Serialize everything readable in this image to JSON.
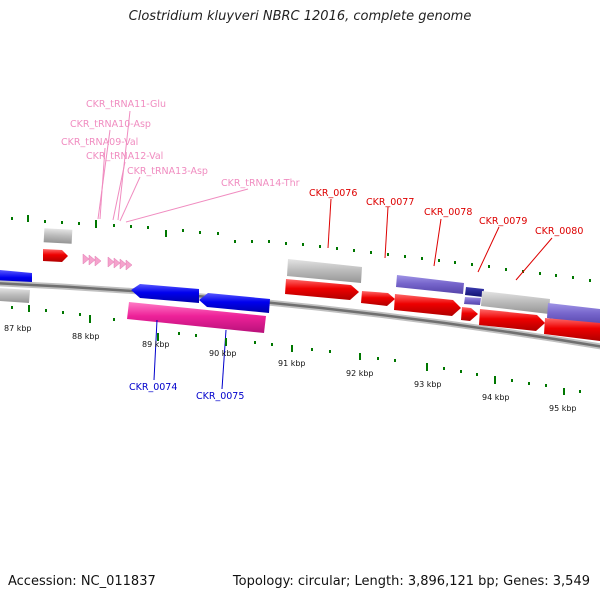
{
  "title": "Clostridium kluyveri NBRC 12016, complete genome",
  "footer": {
    "accession": "Accession: NC_011837",
    "topology": "Topology: circular; Length: 3,896,121 bp; Genes: 3,549"
  },
  "axis_labels": [
    "87 kbp",
    "88 kbp",
    "89 kbp",
    "90 kbp",
    "91 kbp",
    "92 kbp",
    "93 kbp",
    "94 kbp",
    "95 kbp"
  ],
  "gene_labels": {
    "trna11": "CKR_tRNA11-Glu",
    "trna10": "CKR_tRNA10-Asp",
    "trna09": "CKR_tRNA09-Val",
    "trna12": "CKR_tRNA12-Val",
    "trna13": "CKR_tRNA13-Asp",
    "trna14": "CKR_tRNA14-Thr",
    "g76": "CKR_0076",
    "g77": "CKR_0077",
    "g78": "CKR_0078",
    "g79": "CKR_0079",
    "g80": "CKR_0080",
    "g74": "CKR_0074",
    "g75": "CKR_0075"
  },
  "colors": {
    "trna": "#f08cc0",
    "cds_forward": "#ee0000",
    "cds_reverse": "#0000ee",
    "cds_purple": "#7766cc",
    "cds_pink": "#ee2299",
    "gene_grey": "#bdbdbd",
    "tick_green": "#007700",
    "backbone": "#777777"
  }
}
